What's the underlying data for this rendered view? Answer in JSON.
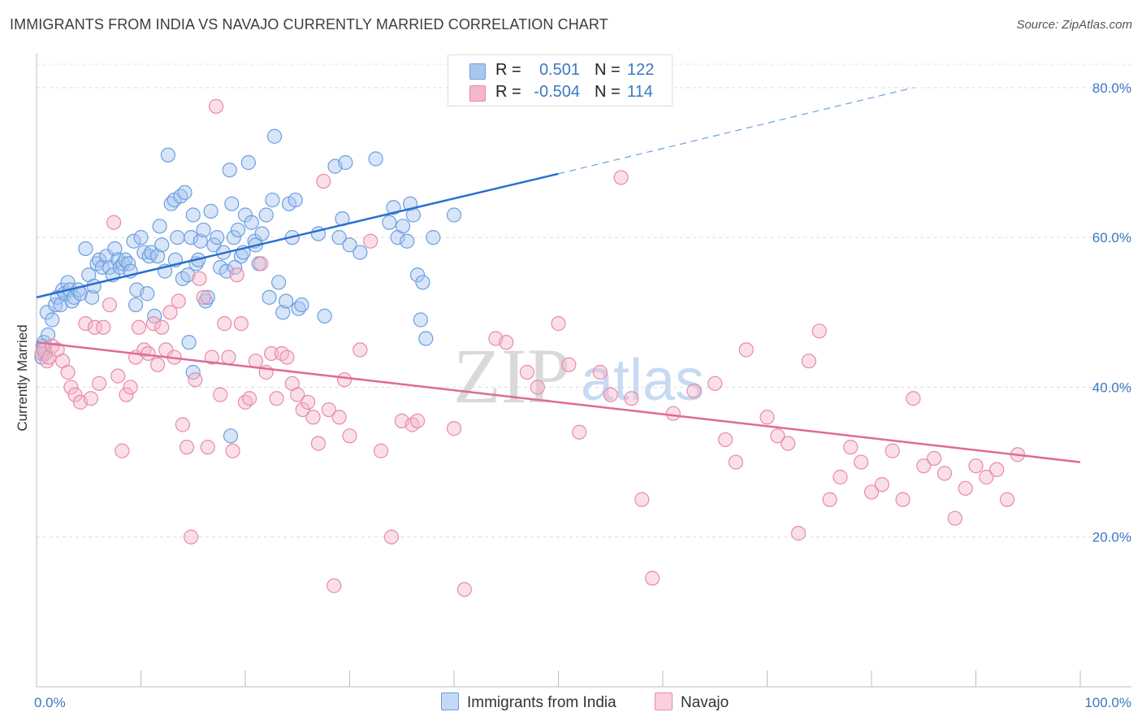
{
  "title": "IMMIGRANTS FROM INDIA VS NAVAJO CURRENTLY MARRIED CORRELATION CHART",
  "source": "Source: ZipAtlas.com",
  "watermark": {
    "zip": "ZIP",
    "atlas": "atlas"
  },
  "legend": {
    "rows": [
      {
        "r_label": "R =",
        "r_value": "0.501",
        "n_label": "N =",
        "n_value": "122",
        "color": "#a9c6ef"
      },
      {
        "r_label": "R =",
        "r_value": "-0.504",
        "n_label": "N =",
        "n_value": "114",
        "color": "#f5b8cb"
      }
    ]
  },
  "bottom_legend": [
    {
      "label": "Immigrants from India",
      "color": "#a9c6ef"
    },
    {
      "label": "Navajo",
      "color": "#f5b8cb"
    }
  ],
  "chart_data": {
    "type": "scatter",
    "title": "IMMIGRANTS FROM INDIA VS NAVAJO CURRENTLY MARRIED CORRELATION CHART",
    "xlabel": "",
    "ylabel": "Currently Married",
    "xlim": [
      0,
      100
    ],
    "ylim": [
      0,
      84
    ],
    "x_tick_labels": [
      "0.0%",
      "100.0%"
    ],
    "y_ticks": [
      20,
      40,
      60,
      80
    ],
    "y_tick_labels": [
      "20.0%",
      "40.0%",
      "60.0%",
      "80.0%"
    ],
    "grid": true,
    "legend_position": "top-center",
    "series": [
      {
        "name": "Immigrants from India",
        "color": "#6a9fe0",
        "fill": "#a9c6ef",
        "trend": {
          "x": [
            0,
            50
          ],
          "y": [
            52.0,
            68.5
          ],
          "dashed_to": [
            84,
            80
          ]
        },
        "points": [
          [
            0.5,
            44.0
          ],
          [
            0.6,
            45.5
          ],
          [
            0.7,
            46.0
          ],
          [
            0.8,
            44.5
          ],
          [
            1.0,
            50.0
          ],
          [
            1.1,
            47.0
          ],
          [
            1.5,
            49.0
          ],
          [
            1.8,
            51.0
          ],
          [
            2.0,
            52.0
          ],
          [
            2.3,
            51.0
          ],
          [
            2.5,
            53.0
          ],
          [
            2.7,
            52.5
          ],
          [
            3.0,
            54.0
          ],
          [
            3.2,
            53.0
          ],
          [
            3.4,
            51.5
          ],
          [
            3.6,
            52.0
          ],
          [
            4.0,
            53.0
          ],
          [
            4.2,
            52.5
          ],
          [
            4.7,
            58.5
          ],
          [
            5.0,
            55.0
          ],
          [
            5.3,
            52.0
          ],
          [
            5.5,
            53.5
          ],
          [
            5.8,
            56.5
          ],
          [
            6.0,
            57.0
          ],
          [
            6.3,
            56.0
          ],
          [
            6.7,
            57.5
          ],
          [
            7.0,
            56.0
          ],
          [
            7.3,
            55.0
          ],
          [
            7.5,
            58.5
          ],
          [
            7.8,
            57.0
          ],
          [
            8.0,
            56.0
          ],
          [
            8.3,
            56.5
          ],
          [
            8.5,
            57.0
          ],
          [
            8.8,
            56.5
          ],
          [
            9.0,
            55.5
          ],
          [
            9.3,
            59.5
          ],
          [
            9.6,
            53.0
          ],
          [
            9.5,
            51.0
          ],
          [
            10.0,
            60.0
          ],
          [
            10.3,
            58.0
          ],
          [
            10.6,
            52.5
          ],
          [
            10.8,
            57.5
          ],
          [
            11.0,
            58.0
          ],
          [
            11.3,
            49.5
          ],
          [
            11.6,
            57.5
          ],
          [
            12.0,
            59.0
          ],
          [
            11.8,
            61.5
          ],
          [
            12.3,
            55.5
          ],
          [
            12.6,
            71.0
          ],
          [
            12.9,
            64.5
          ],
          [
            13.2,
            65.0
          ],
          [
            13.3,
            57.0
          ],
          [
            13.5,
            60.0
          ],
          [
            13.8,
            65.5
          ],
          [
            14.0,
            54.5
          ],
          [
            14.2,
            66.0
          ],
          [
            14.5,
            55.0
          ],
          [
            14.8,
            60.0
          ],
          [
            15.0,
            63.0
          ],
          [
            15.3,
            56.5
          ],
          [
            15.5,
            57.0
          ],
          [
            15.7,
            59.5
          ],
          [
            16.0,
            61.0
          ],
          [
            16.2,
            51.5
          ],
          [
            16.4,
            52.0
          ],
          [
            16.7,
            63.5
          ],
          [
            17.0,
            59.0
          ],
          [
            17.3,
            60.0
          ],
          [
            17.6,
            56.0
          ],
          [
            17.9,
            58.0
          ],
          [
            18.2,
            55.5
          ],
          [
            18.5,
            69.0
          ],
          [
            18.7,
            64.5
          ],
          [
            18.9,
            60.0
          ],
          [
            19.0,
            56.0
          ],
          [
            19.3,
            61.0
          ],
          [
            19.6,
            57.5
          ],
          [
            19.8,
            58.0
          ],
          [
            20.0,
            63.0
          ],
          [
            20.3,
            70.0
          ],
          [
            20.6,
            62.0
          ],
          [
            20.9,
            59.5
          ],
          [
            21.0,
            59.0
          ],
          [
            21.3,
            56.5
          ],
          [
            21.6,
            60.5
          ],
          [
            22.0,
            63.0
          ],
          [
            22.3,
            52.0
          ],
          [
            22.6,
            65.0
          ],
          [
            22.8,
            73.5
          ],
          [
            23.2,
            54.0
          ],
          [
            23.6,
            50.0
          ],
          [
            23.9,
            51.5
          ],
          [
            24.2,
            64.5
          ],
          [
            24.5,
            60.0
          ],
          [
            24.8,
            65.0
          ],
          [
            25.1,
            50.5
          ],
          [
            25.4,
            51.0
          ],
          [
            27.0,
            60.5
          ],
          [
            27.6,
            49.5
          ],
          [
            28.6,
            69.5
          ],
          [
            29.0,
            60.0
          ],
          [
            29.3,
            62.5
          ],
          [
            29.6,
            70.0
          ],
          [
            30.0,
            59.0
          ],
          [
            31.0,
            58.0
          ],
          [
            32.5,
            70.5
          ],
          [
            33.8,
            62.0
          ],
          [
            34.2,
            64.0
          ],
          [
            34.6,
            60.0
          ],
          [
            35.1,
            61.5
          ],
          [
            35.5,
            59.5
          ],
          [
            35.8,
            64.5
          ],
          [
            36.1,
            63.0
          ],
          [
            36.5,
            55.0
          ],
          [
            36.8,
            49.0
          ],
          [
            37.0,
            54.0
          ],
          [
            37.3,
            46.5
          ],
          [
            38.0,
            60.0
          ],
          [
            40.0,
            63.0
          ],
          [
            14.6,
            46.0
          ],
          [
            15.0,
            42.0
          ],
          [
            18.6,
            33.5
          ]
        ]
      },
      {
        "name": "Navajo",
        "color": "#e88aa7",
        "fill": "#f5b8cb",
        "trend": {
          "x": [
            0,
            100
          ],
          "y": [
            46.0,
            30.0
          ]
        },
        "points": [
          [
            0.5,
            44.5
          ],
          [
            0.7,
            45.0
          ],
          [
            1.0,
            43.5
          ],
          [
            1.2,
            44.0
          ],
          [
            1.5,
            45.5
          ],
          [
            2.0,
            45.0
          ],
          [
            2.5,
            43.5
          ],
          [
            3.0,
            42.0
          ],
          [
            3.3,
            40.0
          ],
          [
            3.7,
            39.0
          ],
          [
            4.2,
            38.0
          ],
          [
            4.7,
            48.5
          ],
          [
            5.2,
            38.5
          ],
          [
            5.6,
            48.0
          ],
          [
            6.0,
            40.5
          ],
          [
            6.4,
            48.0
          ],
          [
            7.0,
            51.0
          ],
          [
            7.4,
            62.0
          ],
          [
            7.8,
            41.5
          ],
          [
            8.2,
            31.5
          ],
          [
            8.6,
            39.0
          ],
          [
            9.0,
            40.0
          ],
          [
            9.5,
            44.0
          ],
          [
            9.8,
            48.0
          ],
          [
            10.3,
            45.0
          ],
          [
            10.7,
            44.5
          ],
          [
            11.2,
            48.5
          ],
          [
            11.6,
            43.0
          ],
          [
            12.0,
            48.0
          ],
          [
            12.4,
            45.0
          ],
          [
            12.8,
            50.0
          ],
          [
            13.2,
            44.0
          ],
          [
            13.6,
            51.5
          ],
          [
            14.0,
            35.0
          ],
          [
            14.4,
            32.0
          ],
          [
            14.8,
            20.0
          ],
          [
            15.2,
            41.0
          ],
          [
            15.6,
            54.5
          ],
          [
            16.0,
            52.0
          ],
          [
            16.4,
            32.0
          ],
          [
            16.8,
            44.0
          ],
          [
            17.2,
            77.5
          ],
          [
            17.6,
            39.0
          ],
          [
            18.0,
            48.5
          ],
          [
            18.4,
            44.0
          ],
          [
            18.8,
            31.5
          ],
          [
            19.2,
            55.0
          ],
          [
            19.6,
            48.5
          ],
          [
            20.0,
            38.0
          ],
          [
            20.4,
            38.5
          ],
          [
            21.0,
            43.5
          ],
          [
            21.5,
            56.5
          ],
          [
            22.0,
            42.0
          ],
          [
            22.5,
            44.5
          ],
          [
            23.0,
            38.5
          ],
          [
            23.5,
            44.5
          ],
          [
            24.0,
            44.0
          ],
          [
            24.5,
            40.5
          ],
          [
            25.0,
            39.0
          ],
          [
            25.5,
            37.0
          ],
          [
            26.0,
            38.0
          ],
          [
            26.5,
            36.0
          ],
          [
            27.0,
            32.5
          ],
          [
            27.5,
            67.5
          ],
          [
            28.0,
            37.0
          ],
          [
            28.5,
            13.5
          ],
          [
            29.0,
            36.0
          ],
          [
            29.5,
            41.0
          ],
          [
            30.0,
            33.5
          ],
          [
            31.0,
            45.0
          ],
          [
            32.0,
            59.5
          ],
          [
            33.0,
            31.5
          ],
          [
            34.0,
            20.0
          ],
          [
            35.0,
            35.5
          ],
          [
            36.0,
            35.0
          ],
          [
            36.5,
            35.5
          ],
          [
            40.0,
            34.5
          ],
          [
            41.0,
            13.0
          ],
          [
            44.0,
            46.5
          ],
          [
            45.0,
            46.0
          ],
          [
            47.0,
            42.0
          ],
          [
            48.0,
            40.0
          ],
          [
            50.0,
            48.5
          ],
          [
            51.0,
            43.0
          ],
          [
            52.0,
            34.0
          ],
          [
            54.0,
            42.0
          ],
          [
            55.0,
            39.0
          ],
          [
            56.0,
            68.0
          ],
          [
            57.0,
            38.5
          ],
          [
            58.0,
            25.0
          ],
          [
            59.0,
            14.5
          ],
          [
            61.0,
            36.5
          ],
          [
            63.0,
            39.5
          ],
          [
            65.0,
            40.5
          ],
          [
            66.0,
            33.0
          ],
          [
            67.0,
            30.0
          ],
          [
            68.0,
            45.0
          ],
          [
            70.0,
            36.0
          ],
          [
            71.0,
            33.5
          ],
          [
            72.0,
            32.5
          ],
          [
            73.0,
            20.5
          ],
          [
            74.0,
            43.5
          ],
          [
            75.0,
            47.5
          ],
          [
            76.0,
            25.0
          ],
          [
            77.0,
            28.0
          ],
          [
            78.0,
            32.0
          ],
          [
            79.0,
            30.0
          ],
          [
            80.0,
            26.0
          ],
          [
            81.0,
            27.0
          ],
          [
            82.0,
            31.5
          ],
          [
            83.0,
            25.0
          ],
          [
            84.0,
            38.5
          ],
          [
            85.0,
            29.5
          ],
          [
            86.0,
            30.5
          ],
          [
            87.0,
            28.5
          ],
          [
            88.0,
            22.5
          ],
          [
            89.0,
            26.5
          ],
          [
            90.0,
            29.5
          ],
          [
            91.0,
            28.0
          ],
          [
            92.0,
            29.0
          ],
          [
            93.0,
            25.0
          ],
          [
            94.0,
            31.0
          ]
        ]
      }
    ]
  }
}
